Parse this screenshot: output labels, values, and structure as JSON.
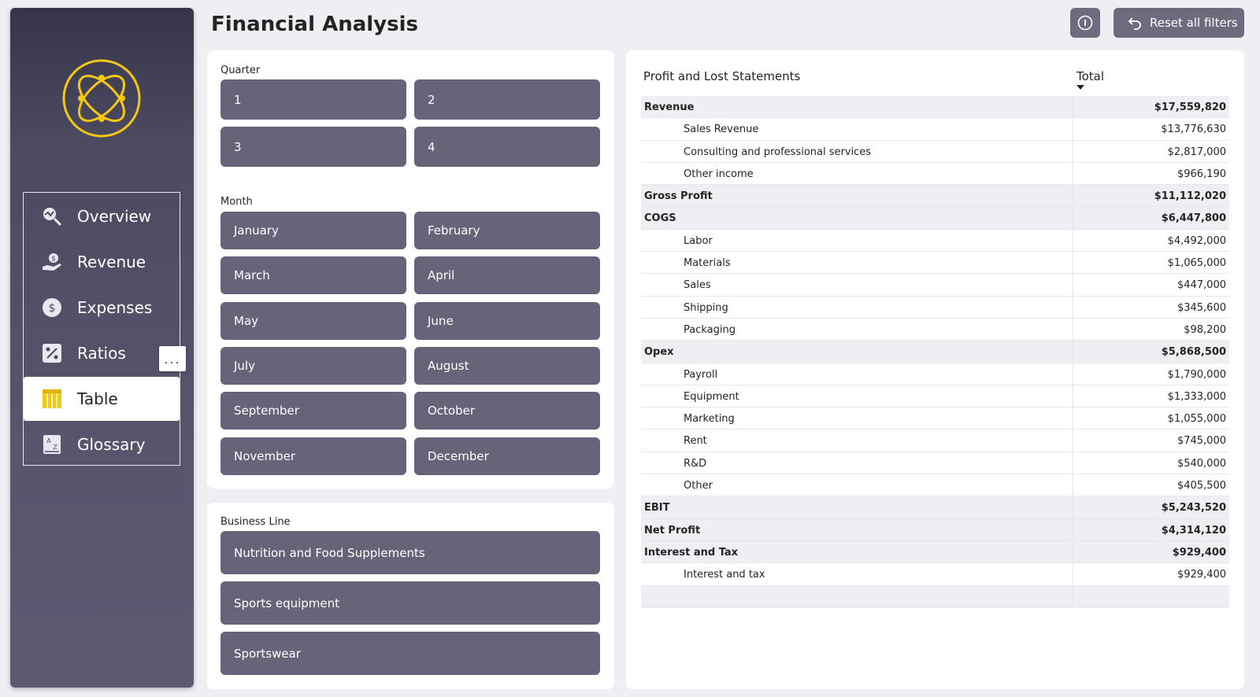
{
  "page": {
    "title": "Financial Analysis"
  },
  "header": {
    "info_icon": "info-icon",
    "reset_label": "Reset all filters",
    "reset_icon": "undo-icon"
  },
  "sidebar": {
    "logo_icon": "orbit-logo",
    "items": [
      {
        "label": "Overview",
        "icon": "search-chart-icon",
        "active": false
      },
      {
        "label": "Revenue",
        "icon": "hand-money-icon",
        "active": false
      },
      {
        "label": "Expenses",
        "icon": "dollar-circle-icon",
        "active": false
      },
      {
        "label": "Ratios",
        "icon": "percent-icon",
        "active": false
      },
      {
        "label": "Table",
        "icon": "table-icon",
        "active": true
      },
      {
        "label": "Glossary",
        "icon": "az-book-icon",
        "active": false
      }
    ],
    "more_label": "..."
  },
  "filters": {
    "quarter": {
      "label": "Quarter",
      "options": [
        "1",
        "2",
        "3",
        "4"
      ]
    },
    "month": {
      "label": "Month",
      "options": [
        "January",
        "February",
        "March",
        "April",
        "May",
        "June",
        "July",
        "August",
        "September",
        "October",
        "November",
        "December"
      ]
    },
    "business_line": {
      "label": "Business Line",
      "options": [
        "Nutrition and Food Supplements",
        "Sports equipment",
        "Sportswear"
      ]
    }
  },
  "table": {
    "header_label": "Profit and Lost Statements",
    "total_label": "Total",
    "rows": [
      {
        "label": "Revenue",
        "value": "$17,559,820",
        "group": true
      },
      {
        "label": "Sales Revenue",
        "value": "$13,776,630",
        "group": false
      },
      {
        "label": "Consulting and professional services",
        "value": "$2,817,000",
        "group": false
      },
      {
        "label": "Other income",
        "value": "$966,190",
        "group": false
      },
      {
        "label": "Gross Profit",
        "value": "$11,112,020",
        "group": true
      },
      {
        "label": "COGS",
        "value": "$6,447,800",
        "group": true
      },
      {
        "label": "Labor",
        "value": "$4,492,000",
        "group": false
      },
      {
        "label": "Materials",
        "value": "$1,065,000",
        "group": false
      },
      {
        "label": "Sales",
        "value": "$447,000",
        "group": false
      },
      {
        "label": "Shipping",
        "value": "$345,600",
        "group": false
      },
      {
        "label": "Packaging",
        "value": "$98,200",
        "group": false
      },
      {
        "label": "Opex",
        "value": "$5,868,500",
        "group": true
      },
      {
        "label": "Payroll",
        "value": "$1,790,000",
        "group": false
      },
      {
        "label": "Equipment",
        "value": "$1,333,000",
        "group": false
      },
      {
        "label": "Marketing",
        "value": "$1,055,000",
        "group": false
      },
      {
        "label": "Rent",
        "value": "$745,000",
        "group": false
      },
      {
        "label": "R&D",
        "value": "$540,000",
        "group": false
      },
      {
        "label": "Other",
        "value": "$405,500",
        "group": false
      },
      {
        "label": "EBIT",
        "value": "$5,243,520",
        "group": true
      },
      {
        "label": "Net Profit",
        "value": "$4,314,120",
        "group": true
      },
      {
        "label": "Interest and Tax",
        "value": "$929,400",
        "group": true
      },
      {
        "label": "Interest and tax",
        "value": "$929,400",
        "group": false
      }
    ]
  },
  "colors": {
    "accent": "#f2c811",
    "tile": "#67647a",
    "sidebar": "#4c4a60"
  }
}
